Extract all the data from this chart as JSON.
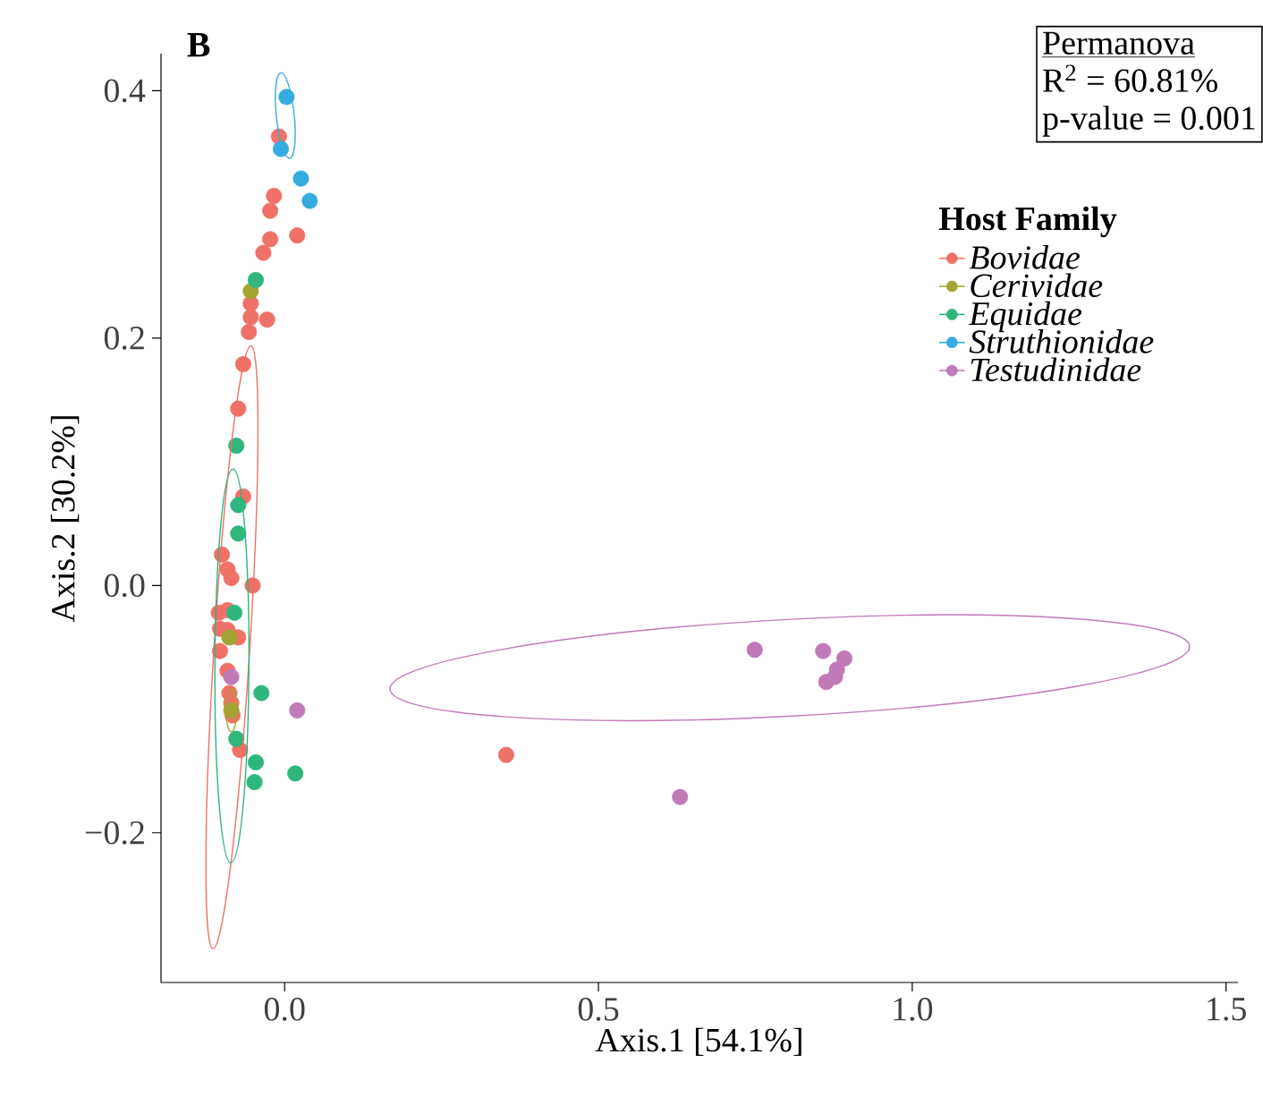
{
  "chart_data": {
    "type": "scatter",
    "title": "B",
    "xlabel": "Axis.1   [54.1%]",
    "ylabel": "Axis.2   [30.2%]",
    "legend_title": "Host Family",
    "legend": "top right",
    "grid": false,
    "annotations": [
      "Permanova",
      "R$^{2}$ = 60.81%",
      "p-value = 0.001"
    ],
    "xlim": [
      -0.197,
      1.519
    ],
    "ylim": [
      -0.321,
      0.43
    ],
    "xticks": [
      {
        "value": 0,
        "label": "0.0"
      },
      {
        "value": 0.5,
        "label": "0.5"
      },
      {
        "value": 1,
        "label": "1.0"
      },
      {
        "value": 1.5,
        "label": "1.5"
      }
    ],
    "yticks": [
      {
        "value": -0.2,
        "label": "−0.2"
      },
      {
        "value": 0,
        "label": "0.0"
      },
      {
        "value": 0.2,
        "label": "0.2"
      },
      {
        "value": 0.4,
        "label": "0.4"
      }
    ],
    "series": [
      {
        "name": "Bovidae",
        "color": "#f07167",
        "x": [
          -0.009,
          -0.017,
          -0.023,
          -0.023,
          -0.034,
          0.02,
          -0.054,
          -0.054,
          -0.028,
          -0.057,
          -0.066,
          -0.074,
          -0.066,
          -0.1,
          -0.091,
          -0.085,
          -0.051,
          -0.105,
          -0.091,
          -0.103,
          -0.091,
          -0.074,
          -0.103,
          -0.091,
          -0.088,
          -0.085,
          -0.083,
          -0.071,
          0.353
        ],
        "values": [
          0.363,
          0.315,
          0.303,
          0.28,
          0.269,
          0.283,
          0.228,
          0.217,
          0.215,
          0.205,
          0.179,
          0.143,
          0.072,
          0.025,
          0.013,
          0.006,
          0.0,
          -0.022,
          -0.02,
          -0.035,
          -0.036,
          -0.042,
          -0.053,
          -0.069,
          -0.087,
          -0.095,
          -0.105,
          -0.133,
          -0.137
        ]
      },
      {
        "name": "Cerividae",
        "color": "#a3a533",
        "x": [
          -0.054,
          -0.088,
          -0.085
        ],
        "values": [
          0.238,
          -0.042,
          -0.101
        ]
      },
      {
        "name": "Equidae",
        "color": "#2eb67d",
        "x": [
          -0.046,
          -0.077,
          -0.074,
          -0.074,
          -0.08,
          -0.037,
          -0.077,
          -0.046,
          0.017,
          -0.048
        ],
        "values": [
          0.247,
          0.113,
          0.065,
          0.042,
          -0.022,
          -0.087,
          -0.124,
          -0.143,
          -0.152,
          -0.159
        ]
      },
      {
        "name": "Struthionidae",
        "color": "#35ace0",
        "x": [
          0.003,
          -0.006,
          0.026,
          0.04
        ],
        "values": [
          0.395,
          0.353,
          0.329,
          0.311
        ]
      },
      {
        "name": "Testudinidae",
        "color": "#c07ab8",
        "x": [
          -0.085,
          0.02,
          0.749,
          0.858,
          0.892,
          0.88,
          0.863,
          0.877,
          0.63
        ],
        "values": [
          -0.074,
          -0.101,
          -0.052,
          -0.053,
          -0.059,
          -0.068,
          -0.078,
          -0.074,
          -0.171
        ]
      }
    ]
  }
}
